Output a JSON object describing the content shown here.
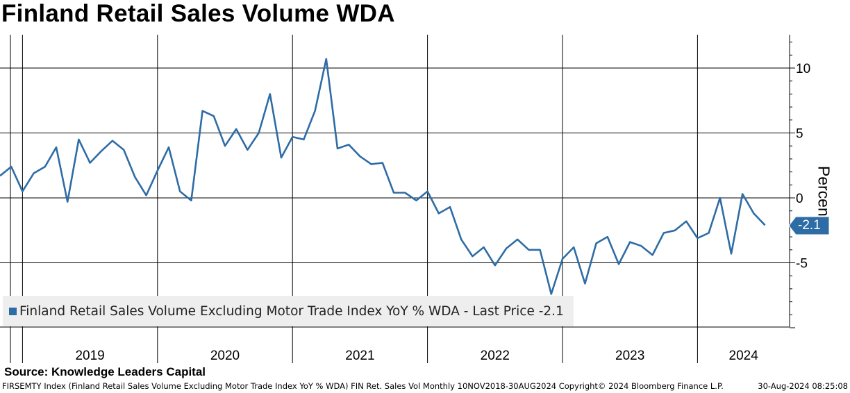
{
  "header": {
    "title": "Finland Retail Sales Volume WDA"
  },
  "source": "Source: Knowledge Leaders Capital",
  "footer": {
    "left": "FIRSEMTY Index (Finland Retail Sales Volume Excluding Motor Trade Index YoY % WDA) FIN Ret. Sales Vol  Monthly 10NOV2018-30AUG2024  Copyright© 2024 Bloomberg Finance L.P.",
    "right": "30-Aug-2024 08:25:08"
  },
  "legend": {
    "label": "Finland Retail Sales Volume Excluding Motor Trade Index YoY % WDA - Last Price -2.1"
  },
  "colors": {
    "series": "#2e6ca5",
    "badge": "#2e6ca5"
  },
  "chart_data": {
    "type": "line",
    "title": "Finland Retail Sales Volume WDA",
    "ylabel": "Percent",
    "xlabel": "",
    "y_ticks": [
      10,
      5,
      0,
      -5
    ],
    "y_tick_labels": [
      "10",
      "5",
      "0",
      "-5"
    ],
    "ylim": [
      -10,
      13
    ],
    "x_axis_labels": [
      "2019",
      "2020",
      "2021",
      "2022",
      "2023",
      "2024"
    ],
    "last_value_label": "-2.1",
    "legend_position": "bottom-left",
    "grid": true,
    "series": [
      {
        "name": "Finland Retail Sales Volume Excluding Motor Trade Index YoY % WDA",
        "x": [
          "2018-11",
          "2018-12",
          "2019-01",
          "2019-02",
          "2019-03",
          "2019-04",
          "2019-05",
          "2019-06",
          "2019-07",
          "2019-08",
          "2019-09",
          "2019-10",
          "2019-11",
          "2019-12",
          "2020-01",
          "2020-02",
          "2020-03",
          "2020-04",
          "2020-05",
          "2020-06",
          "2020-07",
          "2020-08",
          "2020-09",
          "2020-10",
          "2020-11",
          "2020-12",
          "2021-01",
          "2021-02",
          "2021-03",
          "2021-04",
          "2021-05",
          "2021-06",
          "2021-07",
          "2021-08",
          "2021-09",
          "2021-10",
          "2021-11",
          "2021-12",
          "2022-01",
          "2022-02",
          "2022-03",
          "2022-04",
          "2022-05",
          "2022-06",
          "2022-07",
          "2022-08",
          "2022-09",
          "2022-10",
          "2022-11",
          "2022-12",
          "2023-01",
          "2023-02",
          "2023-03",
          "2023-04",
          "2023-05",
          "2023-06",
          "2023-07",
          "2023-08",
          "2023-09",
          "2023-10",
          "2023-11",
          "2023-12",
          "2024-01",
          "2024-02",
          "2024-03",
          "2024-04",
          "2024-05",
          "2024-06",
          "2024-07"
        ],
        "values": [
          1.7,
          2.4,
          0.5,
          1.9,
          2.4,
          3.9,
          -0.3,
          4.5,
          2.7,
          3.6,
          4.4,
          3.7,
          1.6,
          0.2,
          2.1,
          3.9,
          0.5,
          -0.2,
          6.7,
          6.3,
          4.0,
          5.3,
          3.7,
          5.0,
          8.0,
          3.1,
          4.7,
          4.5,
          6.7,
          10.7,
          3.8,
          4.1,
          3.2,
          2.6,
          2.7,
          0.4,
          0.4,
          -0.2,
          0.5,
          -1.2,
          -0.7,
          -3.2,
          -4.5,
          -3.8,
          -5.2,
          -3.9,
          -3.2,
          -4.0,
          -4.0,
          -7.4,
          -4.7,
          -3.8,
          -6.6,
          -3.5,
          -3.0,
          -5.1,
          -3.4,
          -3.7,
          -4.4,
          -2.7,
          -2.5,
          -1.8,
          -3.1,
          -2.7,
          0.0,
          -4.3,
          0.3,
          -1.2,
          -2.1
        ]
      }
    ]
  }
}
